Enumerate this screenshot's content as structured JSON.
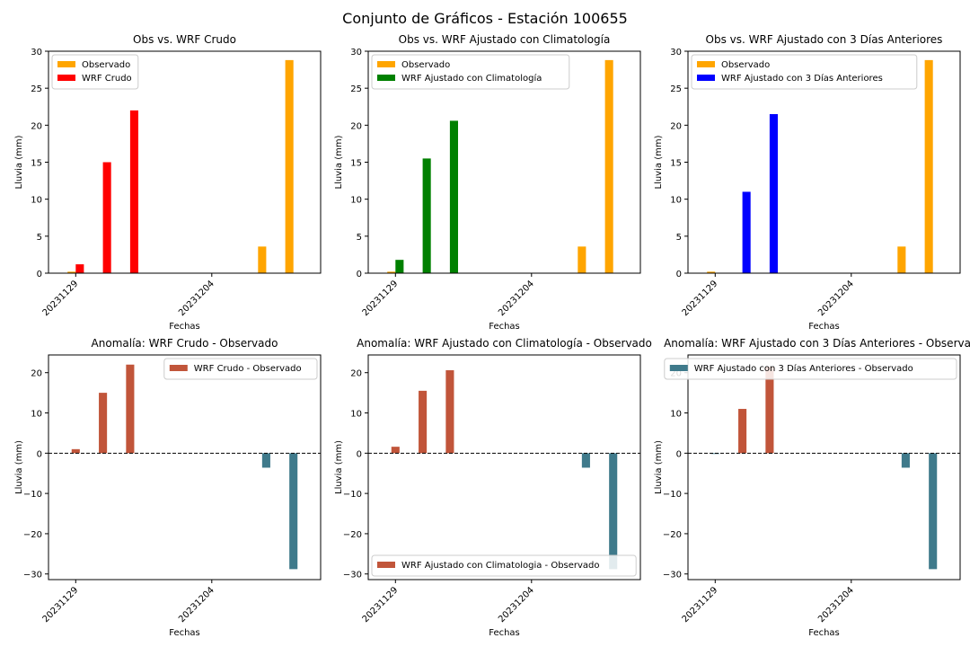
{
  "suptitle": "Conjunto de Gráficos - Estación 100655",
  "chart_data": [
    {
      "type": "bar",
      "title": "Obs vs. WRF Crudo",
      "xlabel": "Fechas",
      "ylabel": "Lluvia (mm)",
      "ylim": [
        0,
        30
      ],
      "yticks": [
        0,
        5,
        10,
        15,
        20,
        25,
        30
      ],
      "xlim": [
        "20231128",
        "20231208"
      ],
      "xticks": [
        "20231129",
        "20231204"
      ],
      "legend": "top-left",
      "x": [
        "20231129",
        "20231130",
        "20231201",
        "20231206",
        "20231207"
      ],
      "series": [
        {
          "name": "Observado",
          "color": "#ffa500",
          "values": [
            0.2,
            0,
            0,
            3.6,
            28.8
          ]
        },
        {
          "name": "WRF Crudo",
          "color": "#ff0000",
          "values": [
            1.2,
            15.0,
            22.0,
            0,
            0
          ]
        }
      ]
    },
    {
      "type": "bar",
      "title": "Obs vs. WRF Ajustado con Climatología",
      "xlabel": "Fechas",
      "ylabel": "Lluvia (mm)",
      "ylim": [
        0,
        30
      ],
      "yticks": [
        0,
        5,
        10,
        15,
        20,
        25,
        30
      ],
      "xlim": [
        "20231128",
        "20231208"
      ],
      "xticks": [
        "20231129",
        "20231204"
      ],
      "legend": "top-left",
      "x": [
        "20231129",
        "20231130",
        "20231201",
        "20231206",
        "20231207"
      ],
      "series": [
        {
          "name": "Observado",
          "color": "#ffa500",
          "values": [
            0.2,
            0,
            0,
            3.6,
            28.8
          ]
        },
        {
          "name": "WRF Ajustado con Climatología",
          "color": "#008000",
          "values": [
            1.8,
            15.5,
            20.6,
            0,
            0
          ]
        }
      ]
    },
    {
      "type": "bar",
      "title": "Obs vs. WRF Ajustado con 3 Días Anteriores",
      "xlabel": "Fechas",
      "ylabel": "Lluvia (mm)",
      "ylim": [
        0,
        30
      ],
      "yticks": [
        0,
        5,
        10,
        15,
        20,
        25,
        30
      ],
      "xlim": [
        "20231128",
        "20231208"
      ],
      "xticks": [
        "20231129",
        "20231204"
      ],
      "legend": "top-left",
      "x": [
        "20231129",
        "20231130",
        "20231201",
        "20231206",
        "20231207"
      ],
      "series": [
        {
          "name": "Observado",
          "color": "#ffa500",
          "values": [
            0.2,
            0,
            0,
            3.6,
            28.8
          ]
        },
        {
          "name": "WRF Ajustado con 3 Días Anteriores",
          "color": "#0000ff",
          "values": [
            0,
            11.0,
            21.5,
            0,
            0
          ]
        }
      ]
    },
    {
      "type": "bar",
      "title": "Anomalía: WRF Crudo - Observado",
      "xlabel": "Fechas",
      "ylabel": "Lluvia (mm)",
      "ylim": [
        -31.4,
        24.4
      ],
      "yticks": [
        -30,
        -20,
        -10,
        0,
        10,
        20
      ],
      "xlim": [
        "20231128",
        "20231208"
      ],
      "xticks": [
        "20231129",
        "20231204"
      ],
      "legend": "top-right",
      "zero_line": true,
      "x": [
        "20231129",
        "20231130",
        "20231201",
        "20231206",
        "20231207"
      ],
      "series": [
        {
          "name": "WRF Crudo - Observado",
          "color": "#c1553a",
          "negative_color": "#3f7a8b",
          "values": [
            1.0,
            15.0,
            22.0,
            -3.6,
            -28.8
          ]
        }
      ]
    },
    {
      "type": "bar",
      "title": "Anomalía: WRF Ajustado con Climatología - Observado",
      "xlabel": "Fechas",
      "ylabel": "Lluvia (mm)",
      "ylim": [
        -31.4,
        24.4
      ],
      "yticks": [
        -30,
        -20,
        -10,
        0,
        10,
        20
      ],
      "xlim": [
        "20231128",
        "20231208"
      ],
      "xticks": [
        "20231129",
        "20231204"
      ],
      "legend": "bottom-left",
      "zero_line": true,
      "x": [
        "20231129",
        "20231130",
        "20231201",
        "20231206",
        "20231207"
      ],
      "series": [
        {
          "name": "WRF Ajustado con Climatologia - Observado",
          "color": "#c1553a",
          "negative_color": "#3f7a8b",
          "values": [
            1.6,
            15.5,
            20.6,
            -3.6,
            -28.8
          ]
        }
      ]
    },
    {
      "type": "bar",
      "title": "Anomalía: WRF Ajustado con 3 Días Anteriores - Observado",
      "xlabel": "Fechas",
      "ylabel": "Lluvia (mm)",
      "ylim": [
        -31.4,
        24.4
      ],
      "yticks": [
        -30,
        -20,
        -10,
        0,
        10,
        20
      ],
      "xlim": [
        "20231128",
        "20231208"
      ],
      "xticks": [
        "20231129",
        "20231204"
      ],
      "legend": "top-right",
      "zero_line": true,
      "x": [
        "20231129",
        "20231130",
        "20231201",
        "20231206",
        "20231207"
      ],
      "series": [
        {
          "name": "WRF Ajustado con 3 Días Anteriores - Observado",
          "color": "#3f7a8b",
          "legend_color": "#3f7a8b",
          "negative_color": "#3f7a8b",
          "positive_color": "#c1553a",
          "values": [
            -0.2,
            11.0,
            21.5,
            -3.6,
            -28.8
          ]
        }
      ]
    }
  ]
}
